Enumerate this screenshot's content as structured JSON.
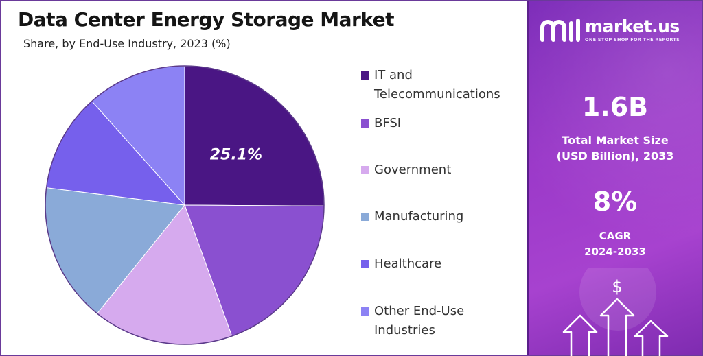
{
  "header": {
    "title": "Data Center Energy Storage Market",
    "subtitle": "Share, by End-Use Industry, 2023 (%)"
  },
  "chart_data": {
    "type": "pie",
    "title": "Data Center Energy Storage Market",
    "subtitle": "Share, by End-Use Industry, 2023 (%)",
    "unit": "%",
    "start_angle": "12 o'clock",
    "direction": "clockwise",
    "slices": [
      {
        "name": "IT and Telecommunications",
        "value": 25.1,
        "color": "#4a1684",
        "label": "25.1%"
      },
      {
        "name": "BFSI",
        "value": 19.4,
        "color": "#8a50d0",
        "label": ""
      },
      {
        "name": "Government",
        "value": 16.3,
        "color": "#d6aaee",
        "label": ""
      },
      {
        "name": "Manufacturing",
        "value": 16.2,
        "color": "#8aaad8",
        "label": ""
      },
      {
        "name": "Healthcare",
        "value": 11.4,
        "color": "#7660ec",
        "label": ""
      },
      {
        "name": "Other End-Use Industries",
        "value": 11.6,
        "color": "#8c82f4",
        "label": ""
      }
    ],
    "legend_placement": "right"
  },
  "legend": [
    {
      "lines": [
        "IT and",
        "Telecommunications"
      ],
      "color": "#4a1684"
    },
    {
      "lines": [
        "BFSI"
      ],
      "color": "#8a50d0"
    },
    {
      "lines": [
        "Government"
      ],
      "color": "#d6aaee"
    },
    {
      "lines": [
        "Manufacturing"
      ],
      "color": "#8aaad8"
    },
    {
      "lines": [
        "Healthcare"
      ],
      "color": "#7660ec"
    },
    {
      "lines": [
        "Other End-Use",
        "Industries"
      ],
      "color": "#8c82f4"
    }
  ],
  "brand": {
    "name": "market.us",
    "tagline": "ONE STOP SHOP FOR THE REPORTS",
    "accent": "#9b39c9"
  },
  "stats": {
    "market_size_value": "1.6B",
    "market_size_label_1": "Total Market Size",
    "market_size_label_2": "(USD Billion), 2033",
    "cagr_value": "8%",
    "cagr_label_1": "CAGR",
    "cagr_label_2": "2024-2033"
  },
  "decoration": {
    "currency_symbol": "$",
    "icon": "growth-arrows-icon"
  }
}
